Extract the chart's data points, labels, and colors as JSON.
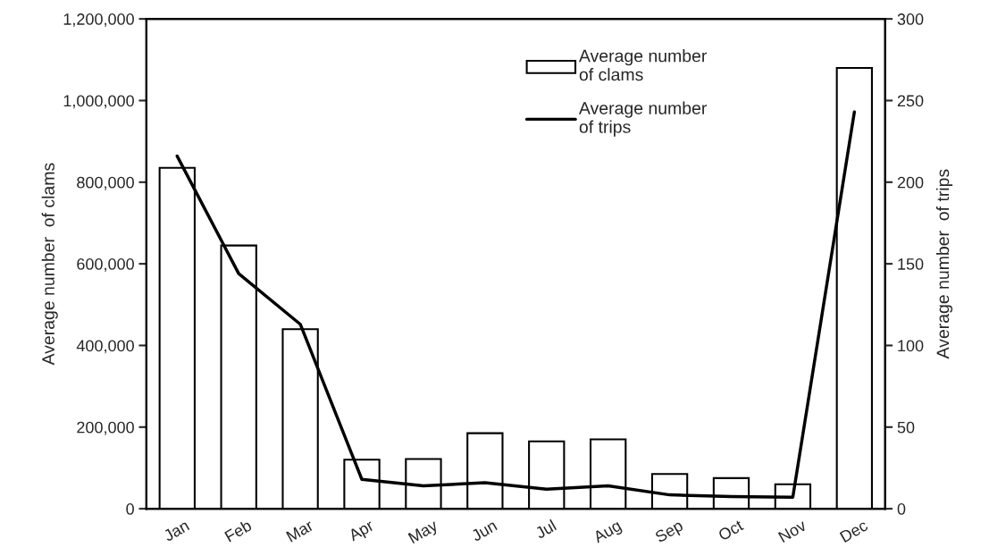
{
  "chart_data": {
    "type": "bar",
    "categories": [
      "Jan",
      "Feb",
      "Mar",
      "Apr",
      "May",
      "Jun",
      "Jul",
      "Aug",
      "Sep",
      "Oct",
      "Nov",
      "Dec"
    ],
    "series": [
      {
        "name": "Average number of clams",
        "color": "#ffffff",
        "values": [
          835000,
          645000,
          440000,
          120000,
          122000,
          185000,
          165000,
          170000,
          85000,
          75000,
          60000,
          1080000
        ]
      },
      {
        "name": "Average number of trips",
        "type": "line",
        "axis": "y2",
        "color": "#000000",
        "values": [
          216,
          144,
          113,
          18,
          14,
          16,
          12,
          14,
          8.5,
          7.5,
          7,
          243
        ]
      }
    ],
    "ylabel": "Average number  of clams",
    "y2label": "Average number  of trips",
    "ylim": [
      0,
      1200000
    ],
    "yticks": [
      {
        "value": 0,
        "label": "0"
      },
      {
        "value": 200000,
        "label": "200,000"
      },
      {
        "value": 400000,
        "label": "400,000"
      },
      {
        "value": 600000,
        "label": "600,000"
      },
      {
        "value": 800000,
        "label": "800,000"
      },
      {
        "value": 1000000,
        "label": "1,000,000"
      },
      {
        "value": 1200000,
        "label": "1,200,000"
      }
    ],
    "y2lim": [
      0,
      300
    ],
    "y2ticks": [
      0,
      50,
      100,
      150,
      200,
      250,
      300
    ],
    "legend": "top right",
    "grid": false
  }
}
